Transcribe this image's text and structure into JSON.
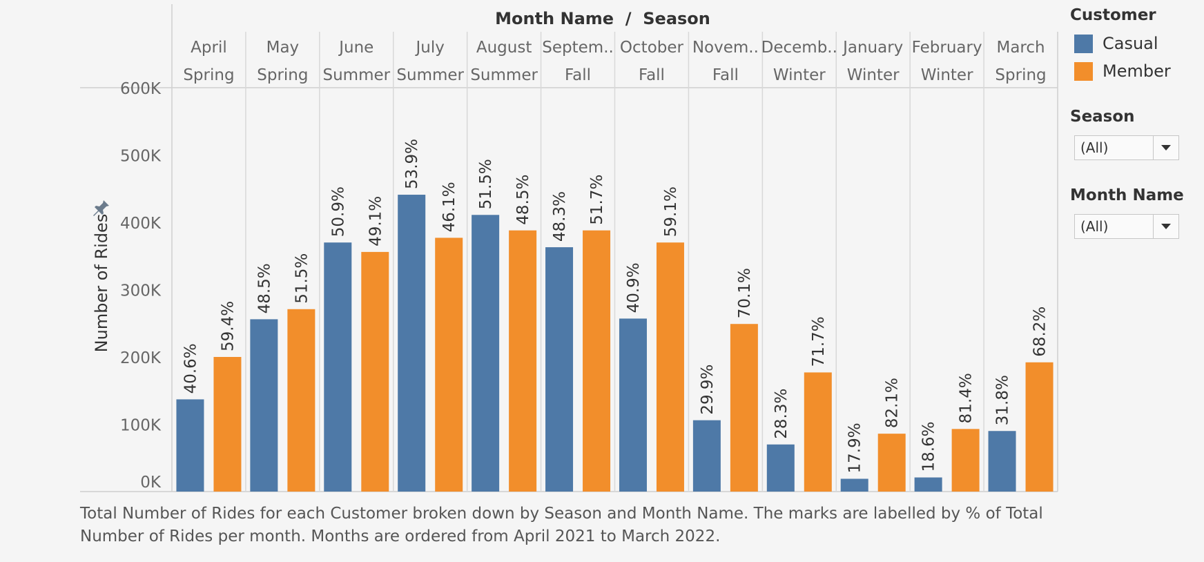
{
  "header": {
    "title": "Month Name  /  Season"
  },
  "yaxis": {
    "title": "Number of Rides",
    "ticks": [
      "0K",
      "100K",
      "200K",
      "300K",
      "400K",
      "500K",
      "600K"
    ],
    "tick_values": [
      0,
      100000,
      200000,
      300000,
      400000,
      500000,
      600000
    ]
  },
  "legend": {
    "title": "Customer",
    "items": [
      {
        "label": "Casual",
        "color": "#4e79a7"
      },
      {
        "label": "Member",
        "color": "#f28e2b"
      }
    ]
  },
  "filters": [
    {
      "title": "Season",
      "value": "(All)"
    },
    {
      "title": "Month Name",
      "value": "(All)"
    }
  ],
  "caption": "Total Number of Rides for each Customer broken down by Season and Month Name. The marks are labelled by % of Total Number of Rides per month. Months are ordered from April 2021 to March 2022.",
  "icons": {
    "pin": "pin-icon",
    "dropdown": "chevron-down-icon"
  },
  "chart_data": {
    "type": "bar",
    "categories": [
      "April",
      "May",
      "June",
      "July",
      "August",
      "Septem..",
      "October",
      "Novem..",
      "Decemb..",
      "January",
      "February",
      "March"
    ],
    "seasons": [
      "Spring",
      "Spring",
      "Summer",
      "Summer",
      "Summer",
      "Fall",
      "Fall",
      "Fall",
      "Winter",
      "Winter",
      "Winter",
      "Spring"
    ],
    "xlabel": "Month Name  /  Season",
    "ylabel": "Number of Rides",
    "ylim": [
      0,
      600000
    ],
    "grid": false,
    "legend_position": "top-right",
    "series": [
      {
        "name": "Casual",
        "color": "#4e79a7",
        "values": [
          137000,
          256000,
          370000,
          441000,
          411000,
          363000,
          257000,
          106000,
          70000,
          19000,
          21000,
          90000
        ],
        "labels": [
          "40.6%",
          "48.5%",
          "50.9%",
          "53.9%",
          "51.5%",
          "48.3%",
          "40.9%",
          "29.9%",
          "28.3%",
          "17.9%",
          "18.6%",
          "31.8%"
        ]
      },
      {
        "name": "Member",
        "color": "#f28e2b",
        "values": [
          200000,
          271000,
          356000,
          377000,
          388000,
          388000,
          370000,
          249000,
          177000,
          86000,
          93000,
          192000
        ],
        "labels": [
          "59.4%",
          "51.5%",
          "49.1%",
          "46.1%",
          "48.5%",
          "51.7%",
          "59.1%",
          "70.1%",
          "71.7%",
          "82.1%",
          "81.4%",
          "68.2%"
        ]
      }
    ]
  }
}
